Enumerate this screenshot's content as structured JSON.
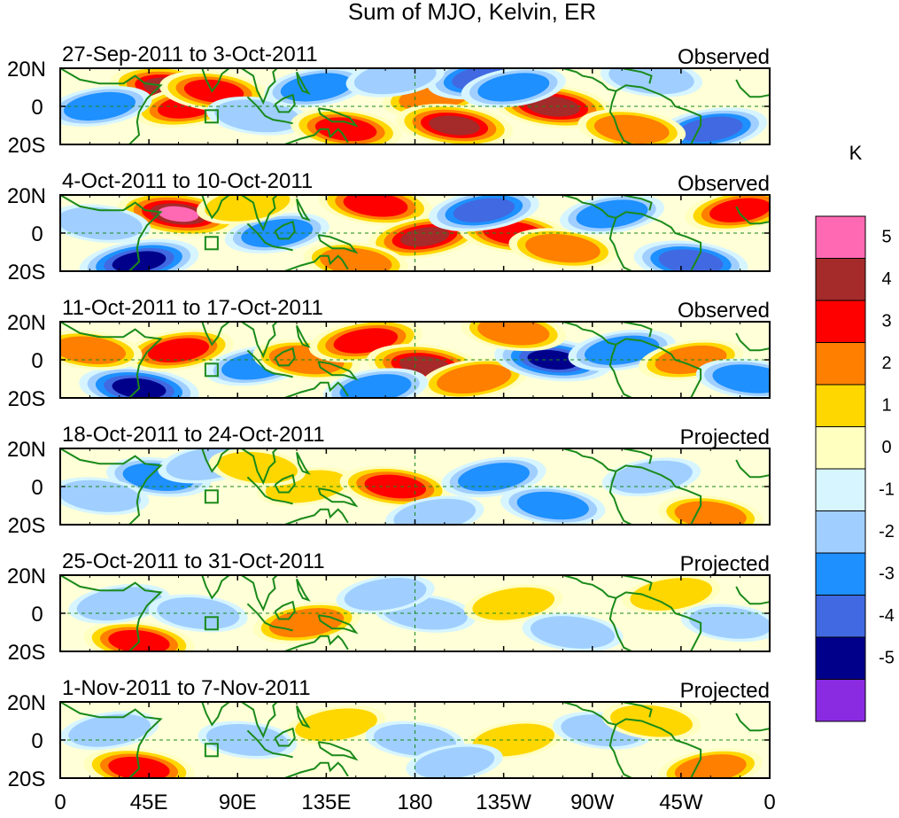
{
  "chart_data": {
    "type": "heatmap",
    "title": "Sum of MJO, Kelvin, ER",
    "units_label": "K",
    "x_tick_labels": [
      "0",
      "45E",
      "90E",
      "135E",
      "180",
      "135W",
      "90W",
      "45W",
      "0"
    ],
    "x_ticks_deg": [
      0,
      45,
      90,
      135,
      180,
      225,
      270,
      315,
      360
    ],
    "y_tick_labels": [
      "20N",
      "0",
      "20S"
    ],
    "y_ticks_deg": [
      20,
      0,
      -20
    ],
    "xlim": [
      0,
      360
    ],
    "ylim": [
      -20,
      20
    ],
    "colorbar": {
      "levels": [
        "5",
        "4",
        "3",
        "2",
        "1",
        "0",
        "-1",
        "-2",
        "-3",
        "-4",
        "-5"
      ],
      "colors": [
        "#ff69b4",
        "#a52a2a",
        "#ff0000",
        "#ff7f00",
        "#ffd700",
        "#ffffc0",
        "#d6f5ff",
        "#a0cfff",
        "#1e90ff",
        "#4169e1",
        "#00008b",
        "#8a2be2"
      ]
    },
    "panels": [
      {
        "dates": "27-Sep-2011 to 3-Oct-2011",
        "label": "Observed",
        "anomalies": [
          {
            "lon": 55,
            "lat": 10,
            "val": 4.5
          },
          {
            "lon": 65,
            "lat": 0,
            "val": 3.5
          },
          {
            "lon": 78,
            "lat": 8,
            "val": 3.2
          },
          {
            "lon": 20,
            "lat": 0,
            "val": -2.5
          },
          {
            "lon": 100,
            "lat": -5,
            "val": -2.0
          },
          {
            "lon": 130,
            "lat": 10,
            "val": -2.5
          },
          {
            "lon": 145,
            "lat": -12,
            "val": 3.5
          },
          {
            "lon": 190,
            "lat": 5,
            "val": 2.5
          },
          {
            "lon": 200,
            "lat": -10,
            "val": 4.5
          },
          {
            "lon": 215,
            "lat": 15,
            "val": -4.0
          },
          {
            "lon": 250,
            "lat": 0,
            "val": 5.0
          },
          {
            "lon": 230,
            "lat": 10,
            "val": -2.5
          },
          {
            "lon": 300,
            "lat": 15,
            "val": -2.0
          },
          {
            "lon": 330,
            "lat": -12,
            "val": -4.0
          },
          {
            "lon": 290,
            "lat": -12,
            "val": 3.0
          },
          {
            "lon": 170,
            "lat": 15,
            "val": -1.5
          }
        ]
      },
      {
        "dates": "4-Oct-2011 to 10-Oct-2011",
        "label": "Observed",
        "anomalies": [
          {
            "lon": 60,
            "lat": 10,
            "val": 5.5
          },
          {
            "lon": 40,
            "lat": -15,
            "val": -5.0
          },
          {
            "lon": 20,
            "lat": 5,
            "val": -2.0
          },
          {
            "lon": 110,
            "lat": 0,
            "val": -2.5
          },
          {
            "lon": 160,
            "lat": 15,
            "val": 4.0
          },
          {
            "lon": 185,
            "lat": -2,
            "val": 4.2
          },
          {
            "lon": 230,
            "lat": 0,
            "val": 3.5
          },
          {
            "lon": 215,
            "lat": 12,
            "val": -3.5
          },
          {
            "lon": 255,
            "lat": -8,
            "val": 3.0
          },
          {
            "lon": 280,
            "lat": 10,
            "val": -2.5
          },
          {
            "lon": 320,
            "lat": -15,
            "val": -4.0
          },
          {
            "lon": 345,
            "lat": 12,
            "val": 3.5
          },
          {
            "lon": 150,
            "lat": -15,
            "val": 2.5
          },
          {
            "lon": 95,
            "lat": 15,
            "val": 2.0
          }
        ]
      },
      {
        "dates": "11-Oct-2011 to 17-Oct-2011",
        "label": "Observed",
        "anomalies": [
          {
            "lon": 40,
            "lat": -15,
            "val": -5.0
          },
          {
            "lon": 60,
            "lat": 5,
            "val": 3.5
          },
          {
            "lon": 15,
            "lat": 5,
            "val": 2.5
          },
          {
            "lon": 100,
            "lat": -3,
            "val": -2.5
          },
          {
            "lon": 125,
            "lat": 0,
            "val": 3.0
          },
          {
            "lon": 155,
            "lat": 10,
            "val": 4.0
          },
          {
            "lon": 185,
            "lat": -3,
            "val": 4.5
          },
          {
            "lon": 210,
            "lat": -10,
            "val": 3.0
          },
          {
            "lon": 250,
            "lat": 0,
            "val": -4.5
          },
          {
            "lon": 285,
            "lat": 5,
            "val": -3.0
          },
          {
            "lon": 230,
            "lat": 15,
            "val": 2.5
          },
          {
            "lon": 320,
            "lat": 0,
            "val": 2.5
          },
          {
            "lon": 350,
            "lat": -10,
            "val": -3.0
          },
          {
            "lon": 160,
            "lat": -15,
            "val": -2.5
          }
        ]
      },
      {
        "dates": "18-Oct-2011 to 24-Oct-2011",
        "label": "Projected",
        "anomalies": [
          {
            "lon": 50,
            "lat": 5,
            "val": -2.5
          },
          {
            "lon": 75,
            "lat": 12,
            "val": -1.8
          },
          {
            "lon": 20,
            "lat": -5,
            "val": -1.5
          },
          {
            "lon": 125,
            "lat": 0,
            "val": 1.5
          },
          {
            "lon": 170,
            "lat": 0,
            "val": 3.5
          },
          {
            "lon": 220,
            "lat": 5,
            "val": -2.5
          },
          {
            "lon": 250,
            "lat": -10,
            "val": -2.5
          },
          {
            "lon": 300,
            "lat": 5,
            "val": -1.5
          },
          {
            "lon": 330,
            "lat": -15,
            "val": 2.5
          },
          {
            "lon": 190,
            "lat": -15,
            "val": -1.5
          },
          {
            "lon": 100,
            "lat": 10,
            "val": 1.2
          }
        ]
      },
      {
        "dates": "25-Oct-2011 to 31-Oct-2011",
        "label": "Projected",
        "anomalies": [
          {
            "lon": 40,
            "lat": -15,
            "val": 3.5
          },
          {
            "lon": 30,
            "lat": 5,
            "val": -2.0
          },
          {
            "lon": 70,
            "lat": 0,
            "val": -1.5
          },
          {
            "lon": 125,
            "lat": -5,
            "val": 3.0
          },
          {
            "lon": 185,
            "lat": 0,
            "val": -2.0
          },
          {
            "lon": 230,
            "lat": 5,
            "val": 1.5
          },
          {
            "lon": 260,
            "lat": -10,
            "val": -1.8
          },
          {
            "lon": 310,
            "lat": 10,
            "val": 1.5
          },
          {
            "lon": 340,
            "lat": -5,
            "val": -1.5
          },
          {
            "lon": 165,
            "lat": 10,
            "val": -1.5
          }
        ]
      },
      {
        "dates": "1-Nov-2011 to 7-Nov-2011",
        "label": "Projected",
        "anomalies": [
          {
            "lon": 40,
            "lat": -15,
            "val": 3.5
          },
          {
            "lon": 25,
            "lat": 5,
            "val": -1.5
          },
          {
            "lon": 95,
            "lat": 0,
            "val": -1.5
          },
          {
            "lon": 140,
            "lat": 8,
            "val": 1.5
          },
          {
            "lon": 180,
            "lat": 0,
            "val": -1.5
          },
          {
            "lon": 230,
            "lat": 0,
            "val": 1.5
          },
          {
            "lon": 275,
            "lat": 5,
            "val": -1.5
          },
          {
            "lon": 330,
            "lat": -15,
            "val": 2.5
          },
          {
            "lon": 300,
            "lat": 10,
            "val": 1.5
          },
          {
            "lon": 200,
            "lat": -12,
            "val": -1.2
          }
        ]
      }
    ]
  }
}
